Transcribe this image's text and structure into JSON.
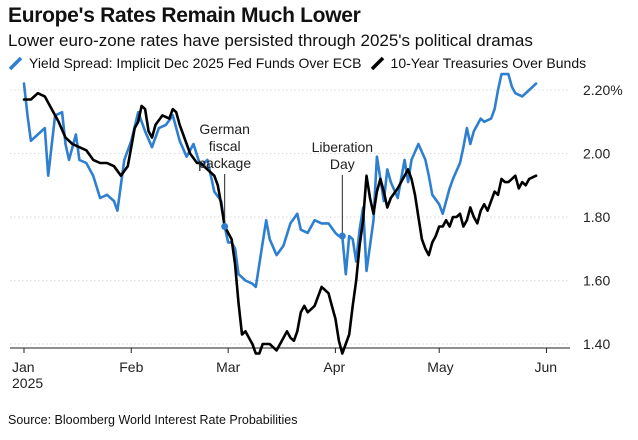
{
  "chart_data": {
    "type": "line",
    "title": "Europe's Rates Remain Much Lower",
    "subtitle": "Lower euro-zone rates have persisted through 2025's political dramas",
    "xlabel": "",
    "ylabel": "",
    "ylim": [
      1.32,
      2.32
    ],
    "y_ticks": [
      {
        "value": 2.2,
        "label": "2.20%"
      },
      {
        "value": 2.0,
        "label": "2.00"
      },
      {
        "value": 1.8,
        "label": "1.80"
      },
      {
        "value": 1.6,
        "label": "1.60"
      },
      {
        "value": 1.4,
        "label": "1.40"
      }
    ],
    "x_ticks": [
      {
        "day": 0,
        "label": "Jan",
        "sublabel": "2025"
      },
      {
        "day": 31,
        "label": "Feb",
        "sublabel": ""
      },
      {
        "day": 59,
        "label": "Mar",
        "sublabel": ""
      },
      {
        "day": 90,
        "label": "Apr",
        "sublabel": ""
      },
      {
        "day": 120,
        "label": "May",
        "sublabel": ""
      },
      {
        "day": 151,
        "label": "Jun",
        "sublabel": ""
      }
    ],
    "legend_position": "top-left",
    "series": [
      {
        "name": "Yield Spread: Implicit Dec 2025 Fed Funds Over ECB",
        "color": "#2f7fd1",
        "points": [
          [
            0,
            2.22
          ],
          [
            1,
            2.12
          ],
          [
            2,
            2.04
          ],
          [
            4,
            2.06
          ],
          [
            6,
            2.08
          ],
          [
            7,
            1.93
          ],
          [
            9,
            2.12
          ],
          [
            11,
            2.13
          ],
          [
            12,
            2.03
          ],
          [
            13,
            1.98
          ],
          [
            15,
            2.06
          ],
          [
            16,
            1.98
          ],
          [
            18,
            1.97
          ],
          [
            20,
            1.93
          ],
          [
            22,
            1.86
          ],
          [
            24,
            1.87
          ],
          [
            26,
            1.85
          ],
          [
            27,
            1.82
          ],
          [
            29,
            1.98
          ],
          [
            31,
            2.04
          ],
          [
            33,
            2.13
          ],
          [
            35,
            2.07
          ],
          [
            37,
            2.02
          ],
          [
            39,
            2.08
          ],
          [
            41,
            2.09
          ],
          [
            43,
            2.12
          ],
          [
            45,
            2.04
          ],
          [
            47,
            1.99
          ],
          [
            49,
            2.03
          ],
          [
            51,
            1.96
          ],
          [
            53,
            1.98
          ],
          [
            55,
            1.88
          ],
          [
            57,
            1.85
          ],
          [
            58,
            1.77
          ],
          [
            59,
            1.72
          ],
          [
            60,
            1.72
          ],
          [
            61,
            1.7
          ],
          [
            62,
            1.62
          ],
          [
            63,
            1.61
          ],
          [
            64,
            1.6
          ],
          [
            66,
            1.59
          ],
          [
            67,
            1.58
          ],
          [
            69,
            1.72
          ],
          [
            70,
            1.79
          ],
          [
            71,
            1.73
          ],
          [
            73,
            1.68
          ],
          [
            75,
            1.71
          ],
          [
            77,
            1.78
          ],
          [
            79,
            1.81
          ],
          [
            80,
            1.76
          ],
          [
            82,
            1.75
          ],
          [
            84,
            1.79
          ],
          [
            86,
            1.78
          ],
          [
            88,
            1.78
          ],
          [
            90,
            1.75
          ],
          [
            91,
            1.74
          ],
          [
            92,
            1.74
          ],
          [
            93,
            1.62
          ],
          [
            94,
            1.74
          ],
          [
            95,
            1.73
          ],
          [
            96,
            1.66
          ],
          [
            97,
            1.76
          ],
          [
            98,
            1.83
          ],
          [
            99,
            1.63
          ],
          [
            101,
            1.79
          ],
          [
            102,
            1.99
          ],
          [
            103,
            1.92
          ],
          [
            104,
            1.85
          ],
          [
            105,
            1.95
          ],
          [
            106,
            1.91
          ],
          [
            108,
            1.86
          ],
          [
            110,
            1.98
          ],
          [
            111,
            1.91
          ],
          [
            112,
            1.98
          ],
          [
            114,
            2.03
          ],
          [
            116,
            1.98
          ],
          [
            117,
            1.93
          ],
          [
            118,
            1.87
          ],
          [
            120,
            1.84
          ],
          [
            121,
            1.81
          ],
          [
            123,
            1.89
          ],
          [
            124,
            1.92
          ],
          [
            126,
            1.97
          ],
          [
            127,
            2.02
          ],
          [
            128,
            2.08
          ],
          [
            129,
            2.03
          ],
          [
            130,
            2.07
          ],
          [
            132,
            2.11
          ],
          [
            133,
            2.1
          ],
          [
            135,
            2.11
          ],
          [
            136,
            2.14
          ],
          [
            137,
            2.2
          ],
          [
            138,
            2.25
          ],
          [
            140,
            2.25
          ],
          [
            141,
            2.21
          ],
          [
            142,
            2.19
          ],
          [
            144,
            2.18
          ],
          [
            146,
            2.2
          ],
          [
            148,
            2.22
          ]
        ]
      },
      {
        "name": "10-Year Treasuries Over Bunds",
        "color": "#000000",
        "points": [
          [
            0,
            2.17
          ],
          [
            1,
            2.17
          ],
          [
            2,
            2.17
          ],
          [
            4,
            2.19
          ],
          [
            6,
            2.18
          ],
          [
            8,
            2.14
          ],
          [
            10,
            2.1
          ],
          [
            12,
            2.05
          ],
          [
            14,
            2.03
          ],
          [
            16,
            2.02
          ],
          [
            18,
            2.01
          ],
          [
            20,
            1.98
          ],
          [
            22,
            1.97
          ],
          [
            24,
            1.97
          ],
          [
            26,
            1.96
          ],
          [
            28,
            1.93
          ],
          [
            30,
            1.96
          ],
          [
            32,
            2.08
          ],
          [
            33,
            2.1
          ],
          [
            34,
            2.15
          ],
          [
            35,
            2.14
          ],
          [
            36,
            2.07
          ],
          [
            37,
            2.05
          ],
          [
            38,
            2.09
          ],
          [
            40,
            2.12
          ],
          [
            42,
            2.11
          ],
          [
            43,
            2.14
          ],
          [
            44,
            2.13
          ],
          [
            45,
            2.09
          ],
          [
            46,
            2.06
          ],
          [
            48,
            2.0
          ],
          [
            50,
            1.97
          ],
          [
            51,
            1.97
          ],
          [
            53,
            1.95
          ],
          [
            55,
            1.93
          ],
          [
            56,
            1.9
          ],
          [
            57,
            1.84
          ],
          [
            58,
            1.77
          ],
          [
            60,
            1.73
          ],
          [
            61,
            1.65
          ],
          [
            62,
            1.53
          ],
          [
            63,
            1.43
          ],
          [
            64,
            1.44
          ],
          [
            65,
            1.42
          ],
          [
            66,
            1.4
          ],
          [
            67,
            1.37
          ],
          [
            68,
            1.37
          ],
          [
            69,
            1.4
          ],
          [
            71,
            1.4
          ],
          [
            73,
            1.38
          ],
          [
            75,
            1.42
          ],
          [
            76,
            1.44
          ],
          [
            77,
            1.42
          ],
          [
            78,
            1.41
          ],
          [
            79,
            1.44
          ],
          [
            80,
            1.5
          ],
          [
            81,
            1.52
          ],
          [
            82,
            1.5
          ],
          [
            84,
            1.52
          ],
          [
            86,
            1.58
          ],
          [
            88,
            1.56
          ],
          [
            89,
            1.52
          ],
          [
            90,
            1.48
          ],
          [
            91,
            1.41
          ],
          [
            92,
            1.37
          ],
          [
            94,
            1.43
          ],
          [
            95,
            1.52
          ],
          [
            96,
            1.6
          ],
          [
            97,
            1.71
          ],
          [
            98,
            1.79
          ],
          [
            99,
            1.93
          ],
          [
            100,
            1.86
          ],
          [
            101,
            1.81
          ],
          [
            102,
            1.88
          ],
          [
            103,
            1.92
          ],
          [
            104,
            1.88
          ],
          [
            105,
            1.83
          ],
          [
            106,
            1.86
          ],
          [
            108,
            1.89
          ],
          [
            109,
            1.91
          ],
          [
            110,
            1.93
          ],
          [
            111,
            1.95
          ],
          [
            112,
            1.92
          ],
          [
            113,
            1.87
          ],
          [
            114,
            1.8
          ],
          [
            115,
            1.73
          ],
          [
            116,
            1.7
          ],
          [
            117,
            1.68
          ],
          [
            118,
            1.72
          ],
          [
            119,
            1.74
          ],
          [
            120,
            1.77
          ],
          [
            121,
            1.77
          ],
          [
            122,
            1.79
          ],
          [
            123,
            1.77
          ],
          [
            124,
            1.8
          ],
          [
            125,
            1.8
          ],
          [
            126,
            1.81
          ],
          [
            127,
            1.77
          ],
          [
            128,
            1.79
          ],
          [
            129,
            1.83
          ],
          [
            130,
            1.8
          ],
          [
            131,
            1.78
          ],
          [
            132,
            1.82
          ],
          [
            133,
            1.84
          ],
          [
            134,
            1.82
          ],
          [
            135,
            1.85
          ],
          [
            136,
            1.88
          ],
          [
            137,
            1.87
          ],
          [
            138,
            1.92
          ],
          [
            139,
            1.91
          ],
          [
            140,
            1.91
          ],
          [
            141,
            1.92
          ],
          [
            142,
            1.93
          ],
          [
            143,
            1.89
          ],
          [
            144,
            1.91
          ],
          [
            145,
            1.9
          ],
          [
            146,
            1.92
          ],
          [
            148,
            1.93
          ]
        ]
      }
    ],
    "annotations": [
      {
        "lines": [
          "German",
          "fiscal",
          "package"
        ],
        "day": 58,
        "series_index": 0,
        "value": 1.77
      },
      {
        "lines": [
          "Liberation",
          "Day"
        ],
        "day": 92,
        "series_index": 0,
        "value": 1.74
      }
    ],
    "source": "Source: Bloomberg World Interest Rate Probabilities"
  }
}
